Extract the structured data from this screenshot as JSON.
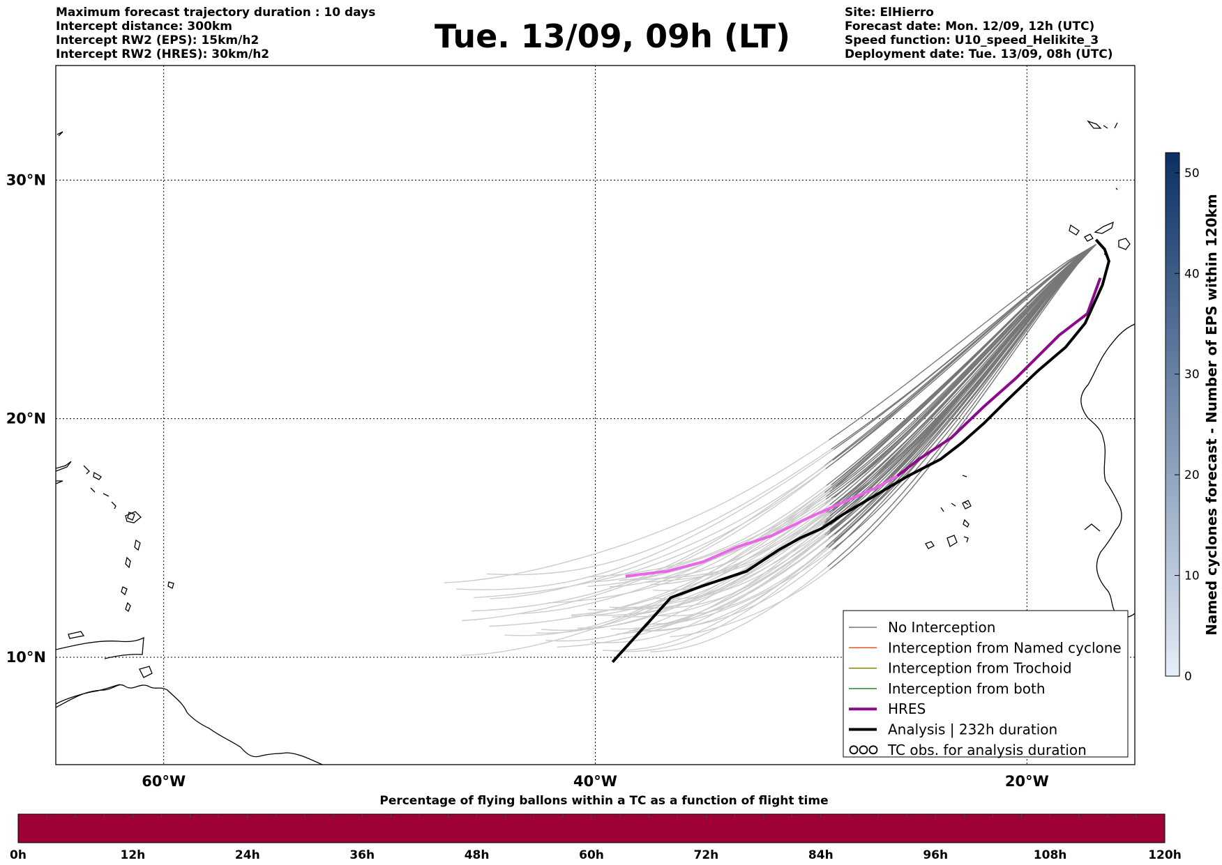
{
  "header": {
    "left_lines": [
      "Maximum forecast trajectory duration : 10 days",
      "Intercept distance: 300km",
      "Intercept RW2 (EPS):  15km/h2",
      "Intercept RW2 (HRES): 30km/h2"
    ],
    "title": "Tue. 13/09, 09h (LT)",
    "right_lines": [
      "Site: ElHierro",
      "Forecast date: Mon. 12/09, 12h (UTC)",
      "Speed function: U10_speed_Helikite_3",
      "Deployment date: Tue. 13/09, 08h (UTC)"
    ]
  },
  "map": {
    "lon_range": [
      -65,
      -15
    ],
    "lat_range": [
      5.5,
      34.8
    ],
    "lon_labels": [
      {
        "lon": -60,
        "label": "60°W"
      },
      {
        "lon": -40,
        "label": "40°W"
      },
      {
        "lon": -20,
        "label": "20°W"
      }
    ],
    "lat_labels": [
      {
        "lat": 10,
        "label": "10°N"
      },
      {
        "lat": 20,
        "label": "20°N"
      },
      {
        "lat": 30,
        "label": "30°N"
      }
    ],
    "grid": true,
    "colors": {
      "no_interception": "#777777",
      "no_interception_late": "#cccccc",
      "named_cyclone": "#e8571f",
      "trochoid": "#808000",
      "both": "#228b22",
      "hres": "#8b0a8b",
      "hres_late": "#e866e8",
      "analysis": "#000000"
    },
    "hres_track": [
      [
        -16.6,
        25.9
      ],
      [
        -17.2,
        24.4
      ],
      [
        -18.5,
        23.5
      ],
      [
        -20.5,
        21.7
      ],
      [
        -22.0,
        20.5
      ],
      [
        -23.5,
        19.2
      ],
      [
        -25.0,
        18.3
      ],
      [
        -26.0,
        17.6
      ],
      [
        -27.0,
        17.1
      ],
      [
        -28.5,
        16.5
      ],
      [
        -30.0,
        15.9
      ],
      [
        -31.8,
        15.1
      ],
      [
        -33.5,
        14.6
      ],
      [
        -35.0,
        14.0
      ],
      [
        -36.7,
        13.6
      ],
      [
        -38.6,
        13.4
      ]
    ],
    "hres_split_lon": -26.0,
    "analysis_track": [
      [
        -16.8,
        27.5
      ],
      [
        -16.4,
        27.1
      ],
      [
        -16.2,
        26.6
      ],
      [
        -16.5,
        25.6
      ],
      [
        -17.3,
        24.0
      ],
      [
        -18.2,
        23.0
      ],
      [
        -19.5,
        22.0
      ],
      [
        -21.0,
        20.7
      ],
      [
        -22.0,
        19.8
      ],
      [
        -23.0,
        19.0
      ],
      [
        -24.0,
        18.3
      ],
      [
        -25.5,
        17.6
      ],
      [
        -27.0,
        16.8
      ],
      [
        -28.5,
        16.0
      ],
      [
        -29.5,
        15.4
      ],
      [
        -30.5,
        15.0
      ],
      [
        -31.5,
        14.5
      ],
      [
        -33.0,
        13.6
      ],
      [
        -35.0,
        13.0
      ],
      [
        -36.5,
        12.5
      ],
      [
        -37.5,
        11.5
      ],
      [
        -38.0,
        11.0
      ],
      [
        -38.5,
        10.5
      ],
      [
        -38.9,
        10.1
      ],
      [
        -39.2,
        9.8
      ]
    ],
    "eps_bundle": {
      "start": [
        -16.8,
        27.3
      ],
      "count": 50,
      "end_lon_range": [
        -47.0,
        -36.5
      ],
      "end_lat_range": [
        10.2,
        13.5
      ],
      "split_lon": -29.5
    }
  },
  "legend": {
    "items": [
      {
        "label": "No Interception",
        "color": "#777777",
        "width": 1.5,
        "kind": "line"
      },
      {
        "label": "Interception from Named cyclone",
        "color": "#e8571f",
        "width": 1.5,
        "kind": "line"
      },
      {
        "label": "Interception from Trochoid",
        "color": "#808000",
        "width": 1.5,
        "kind": "line"
      },
      {
        "label": "Interception from both",
        "color": "#228b22",
        "width": 1.5,
        "kind": "line"
      },
      {
        "label": "HRES",
        "color": "#8b0a8b",
        "width": 4,
        "kind": "line"
      },
      {
        "label": "Analysis | 232h duration",
        "color": "#000000",
        "width": 4,
        "kind": "line"
      },
      {
        "label": "TC obs. for analysis duration",
        "color": "#000000",
        "width": 1.5,
        "kind": "symbol"
      }
    ],
    "placement": "lower-right"
  },
  "colorbar_right": {
    "label": "Named cyclones forecast - Number of EPS within 120km",
    "range": [
      0,
      52
    ],
    "ticks": [
      {
        "value": 0,
        "label": "0"
      },
      {
        "value": 10,
        "label": "10"
      },
      {
        "value": 20,
        "label": "20"
      },
      {
        "value": 30,
        "label": "30"
      },
      {
        "value": 40,
        "label": "40"
      },
      {
        "value": 50,
        "label": "50"
      }
    ],
    "color_low": "#e6eef8",
    "color_high": "#0a3064"
  },
  "colorbar_bottom": {
    "title": "Percentage of flying ballons within a TC as a function of flight time",
    "ticks": [
      "0h",
      "12h",
      "24h",
      "36h",
      "48h",
      "60h",
      "72h",
      "84h",
      "96h",
      "108h",
      "120h"
    ],
    "fill_color": "#9e0038"
  }
}
